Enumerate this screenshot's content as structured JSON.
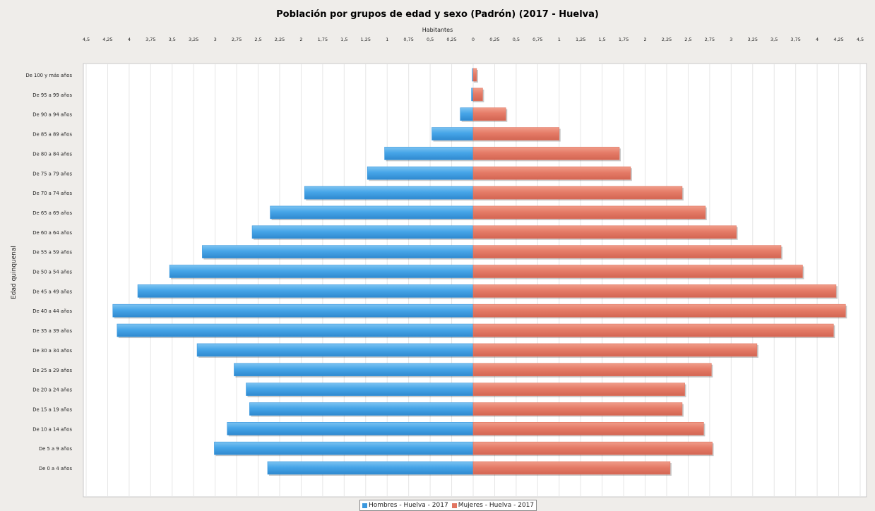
{
  "chart_data": {
    "type": "bar",
    "orientation": "horizontal",
    "layout": "population-pyramid",
    "title": "Población por grupos de edad y sexo (Padrón) (2017 - Huelva)",
    "xlabel": "Habitantes",
    "ylabel": "Edad quinquenal",
    "xlim": [
      -4.5,
      4.5
    ],
    "grid": true,
    "legend_position": "bottom",
    "xticks": [
      {
        "value": -4.5,
        "label": "4,5"
      },
      {
        "value": -4.25,
        "label": "4,25"
      },
      {
        "value": -4,
        "label": "4"
      },
      {
        "value": -3.75,
        "label": "3,75"
      },
      {
        "value": -3.5,
        "label": "3,5"
      },
      {
        "value": -3.25,
        "label": "3,25"
      },
      {
        "value": -3,
        "label": "3"
      },
      {
        "value": -2.75,
        "label": "2,75"
      },
      {
        "value": -2.5,
        "label": "2,5"
      },
      {
        "value": -2.25,
        "label": "2,25"
      },
      {
        "value": -2,
        "label": "2"
      },
      {
        "value": -1.75,
        "label": "1,75"
      },
      {
        "value": -1.5,
        "label": "1,5"
      },
      {
        "value": -1.25,
        "label": "1,25"
      },
      {
        "value": -1,
        "label": "1"
      },
      {
        "value": -0.75,
        "label": "0,75"
      },
      {
        "value": -0.5,
        "label": "0,5"
      },
      {
        "value": -0.25,
        "label": "0,25"
      },
      {
        "value": 0,
        "label": "0"
      },
      {
        "value": 0.25,
        "label": "0,25"
      },
      {
        "value": 0.5,
        "label": "0,5"
      },
      {
        "value": 0.75,
        "label": "0,75"
      },
      {
        "value": 1,
        "label": "1"
      },
      {
        "value": 1.25,
        "label": "1,25"
      },
      {
        "value": 1.5,
        "label": "1,5"
      },
      {
        "value": 1.75,
        "label": "1,75"
      },
      {
        "value": 2,
        "label": "2"
      },
      {
        "value": 2.25,
        "label": "2,25"
      },
      {
        "value": 2.5,
        "label": "2,5"
      },
      {
        "value": 2.75,
        "label": "2,75"
      },
      {
        "value": 3,
        "label": "3"
      },
      {
        "value": 3.25,
        "label": "3,25"
      },
      {
        "value": 3.5,
        "label": "3,5"
      },
      {
        "value": 3.75,
        "label": "3,75"
      },
      {
        "value": 4,
        "label": "4"
      },
      {
        "value": 4.25,
        "label": "4,25"
      },
      {
        "value": 4.5,
        "label": "4,5"
      }
    ],
    "categories": [
      "De 100 y más años",
      "De 95 a 99 años",
      "De 90 a 94 años",
      "De 85 a 89 años",
      "De 80 a 84 años",
      "De 75 a 79 años",
      "De 70 a 74 años",
      "De 65 a 69 años",
      "De 60 a 64 años",
      "De 55 a 59 años",
      "De 50 a 54 años",
      "De 45 a 49 años",
      "De 40 a 44 años",
      "De 35 a 39 años",
      "De 30 a 34 años",
      "De 25 a 29 años",
      "De 20 a 24 años",
      "De 15 a 19 años",
      "De 10 a 14 años",
      "De 5 a 9 años",
      "De 0 a 4 años"
    ],
    "series": [
      {
        "name": "Hombres - Huelva - 2017",
        "color": "#3b98de",
        "side": "left",
        "values": [
          0.01,
          0.02,
          0.15,
          0.48,
          1.03,
          1.23,
          1.96,
          2.36,
          2.57,
          3.15,
          3.53,
          3.9,
          4.19,
          4.14,
          3.21,
          2.78,
          2.64,
          2.6,
          2.86,
          3.01,
          2.39
        ]
      },
      {
        "name": "Mujeres - Huelva - 2017",
        "color": "#e27662",
        "side": "right",
        "values": [
          0.04,
          0.11,
          0.38,
          1.0,
          1.7,
          1.83,
          2.43,
          2.7,
          3.06,
          3.58,
          3.83,
          4.22,
          4.33,
          4.19,
          3.3,
          2.77,
          2.46,
          2.43,
          2.68,
          2.78,
          2.29
        ]
      }
    ]
  }
}
